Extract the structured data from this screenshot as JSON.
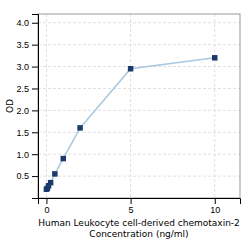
{
  "chart_data": {
    "type": "line",
    "x": [
      0,
      0.0625,
      0.125,
      0.25,
      0.5,
      1.0,
      2.0,
      5.0,
      10.0
    ],
    "values": [
      0.2,
      0.22,
      0.28,
      0.35,
      0.55,
      0.9,
      1.6,
      2.95,
      3.2
    ],
    "color": "#a8c8e0",
    "colors": [
      "#1a3a6b",
      "#1a3a6b",
      "#1a3a6b",
      "#1a3a6b",
      "#1a3a6b",
      "#1a3a6b",
      "#1a3a6b",
      "#1a3a6b",
      "#1a3a6b"
    ],
    "marker": "square",
    "xlabel": [
      "Human Leukocyte cell-derived chemotaxin-2",
      "Concentration (ng/ml)"
    ],
    "ylabel": "OD",
    "xlim": [
      -0.5,
      11.5
    ],
    "ylim": [
      0,
      4.2
    ],
    "xticks": [
      0,
      5,
      10
    ],
    "yticks": [
      0.5,
      {
        "value": 1.0,
        "label": "1.0"
      },
      1.5,
      {
        "value": 2.0,
        "label": "2.0"
      },
      2.5,
      {
        "value": 3.0,
        "label": "3.0"
      },
      3.5,
      {
        "value": 4.0,
        "label": "4.0"
      }
    ],
    "grid": true
  }
}
